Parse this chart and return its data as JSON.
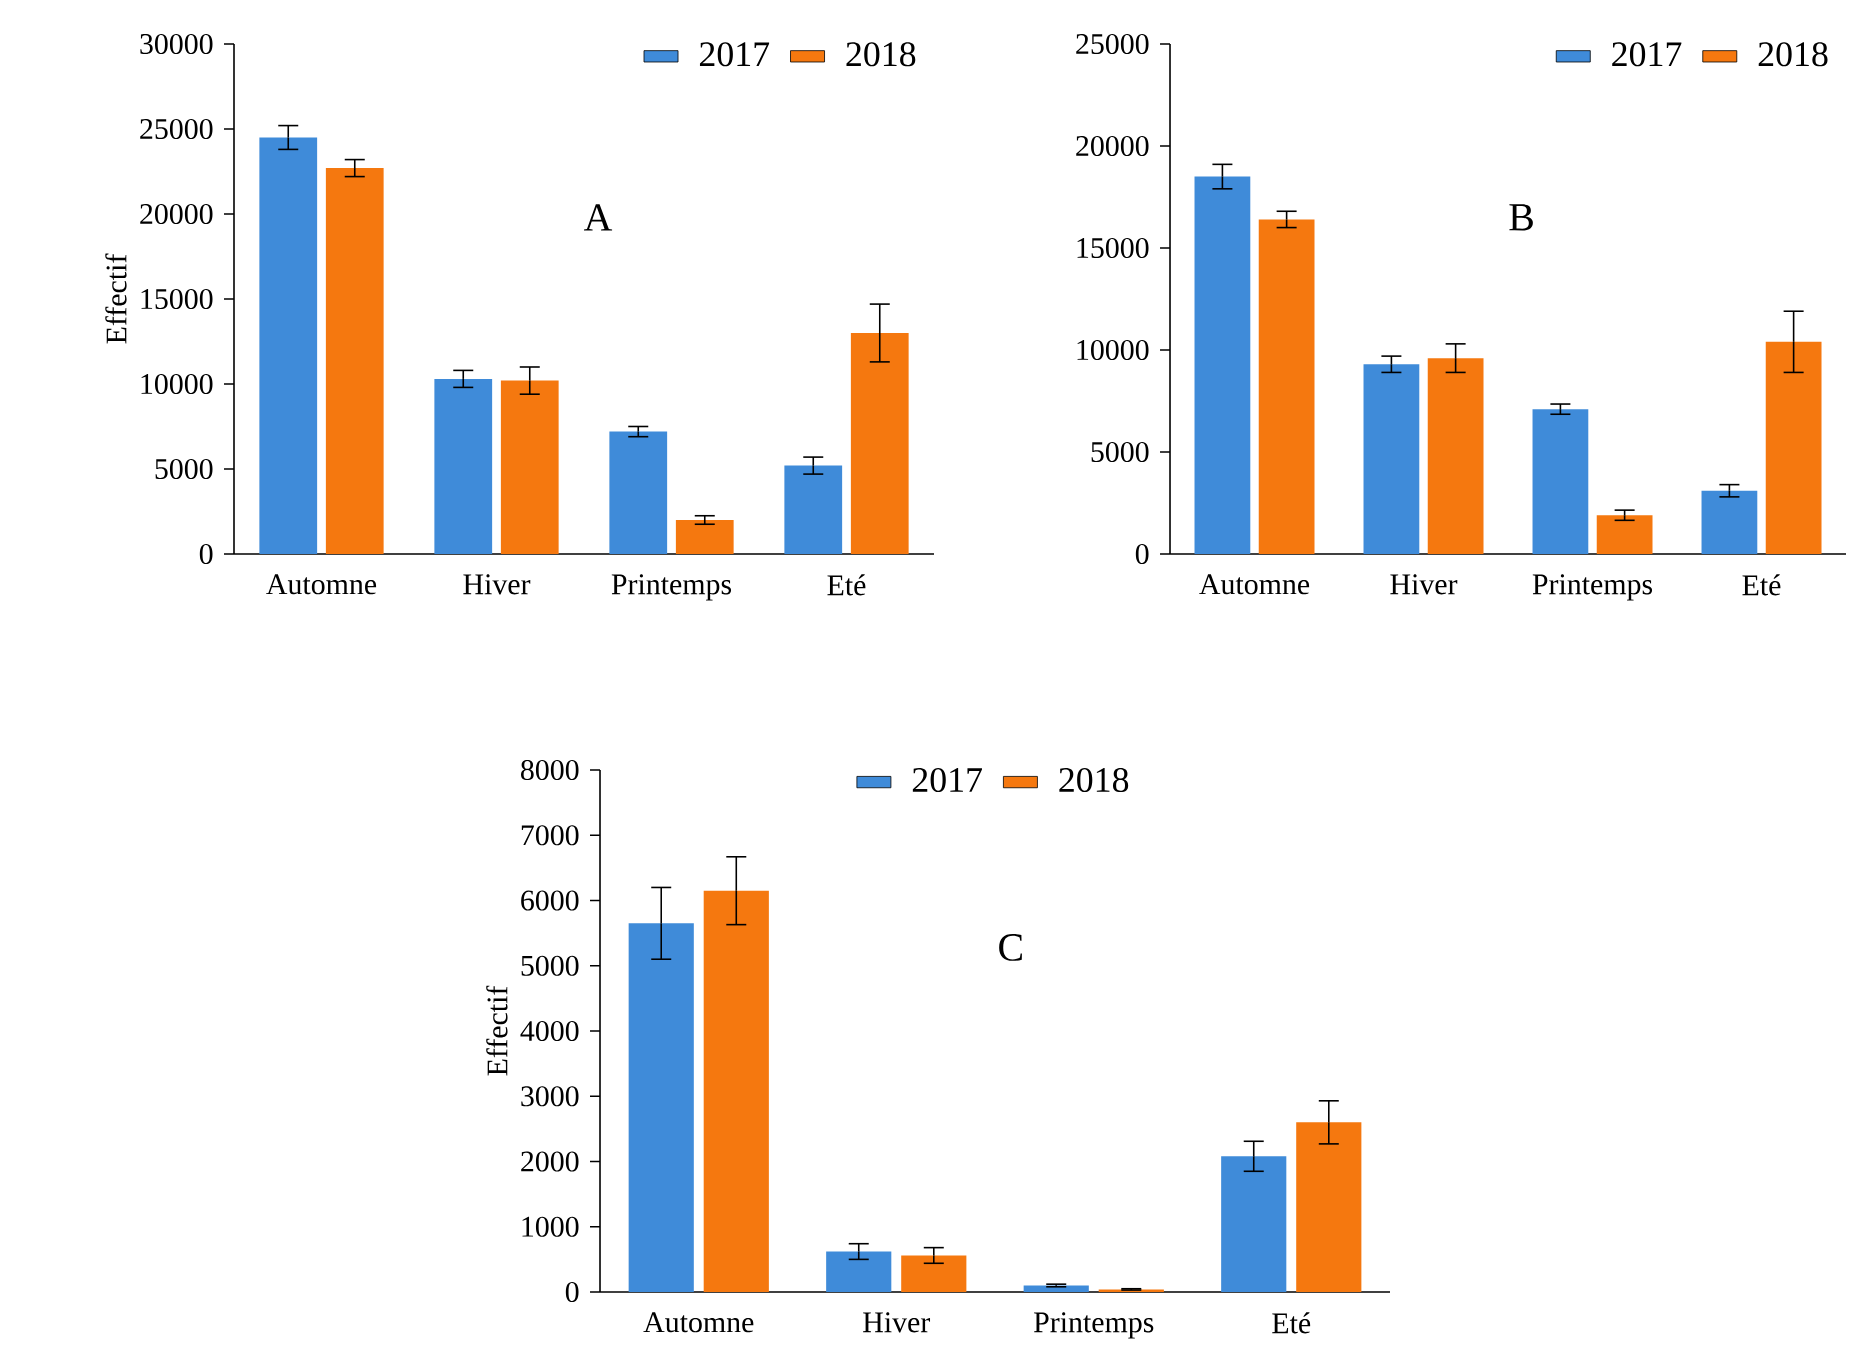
{
  "chart_data": [
    {
      "type": "bar",
      "ylabel": "Effectif",
      "annotations": [
        "A"
      ],
      "categories": [
        "Automne",
        "Hiver",
        "Printemps",
        "Eté"
      ],
      "ylim": [
        0,
        30000
      ],
      "yticks": [
        0,
        5000,
        10000,
        15000,
        20000,
        25000,
        30000
      ],
      "legend": "top right",
      "series": [
        {
          "name": "2017",
          "color": "#3f8bd9",
          "values": [
            24500,
            10300,
            7200,
            5200
          ],
          "errors": [
            700,
            500,
            300,
            500
          ]
        },
        {
          "name": "2018",
          "color": "#f5780f",
          "values": [
            22700,
            10200,
            2000,
            13000
          ],
          "errors": [
            500,
            800,
            250,
            1700
          ]
        }
      ]
    },
    {
      "type": "bar",
      "annotations": [
        "B"
      ],
      "categories": [
        "Automne",
        "Hiver",
        "Printemps",
        "Eté"
      ],
      "ylim": [
        0,
        25000
      ],
      "yticks": [
        0,
        5000,
        10000,
        15000,
        20000,
        25000
      ],
      "legend": "top right",
      "series": [
        {
          "name": "2017",
          "color": "#3f8bd9",
          "values": [
            18500,
            9300,
            7100,
            3100
          ],
          "errors": [
            600,
            400,
            250,
            300
          ]
        },
        {
          "name": "2018",
          "color": "#f5780f",
          "values": [
            16400,
            9600,
            1900,
            10400
          ],
          "errors": [
            400,
            700,
            250,
            1500
          ]
        }
      ]
    },
    {
      "type": "bar",
      "ylabel": "Effectif",
      "annotations": [
        "C"
      ],
      "categories": [
        "Automne",
        "Hiver",
        "Printemps",
        "Eté"
      ],
      "ylim": [
        0,
        8000
      ],
      "yticks": [
        0,
        1000,
        2000,
        3000,
        4000,
        5000,
        6000,
        7000,
        8000
      ],
      "legend": "top",
      "series": [
        {
          "name": "2017",
          "color": "#3f8bd9",
          "values": [
            5650,
            620,
            100,
            2080
          ],
          "errors": [
            550,
            120,
            20,
            230
          ]
        },
        {
          "name": "2018",
          "color": "#f5780f",
          "values": [
            6150,
            560,
            40,
            2600
          ],
          "errors": [
            520,
            120,
            10,
            330
          ]
        }
      ]
    }
  ]
}
